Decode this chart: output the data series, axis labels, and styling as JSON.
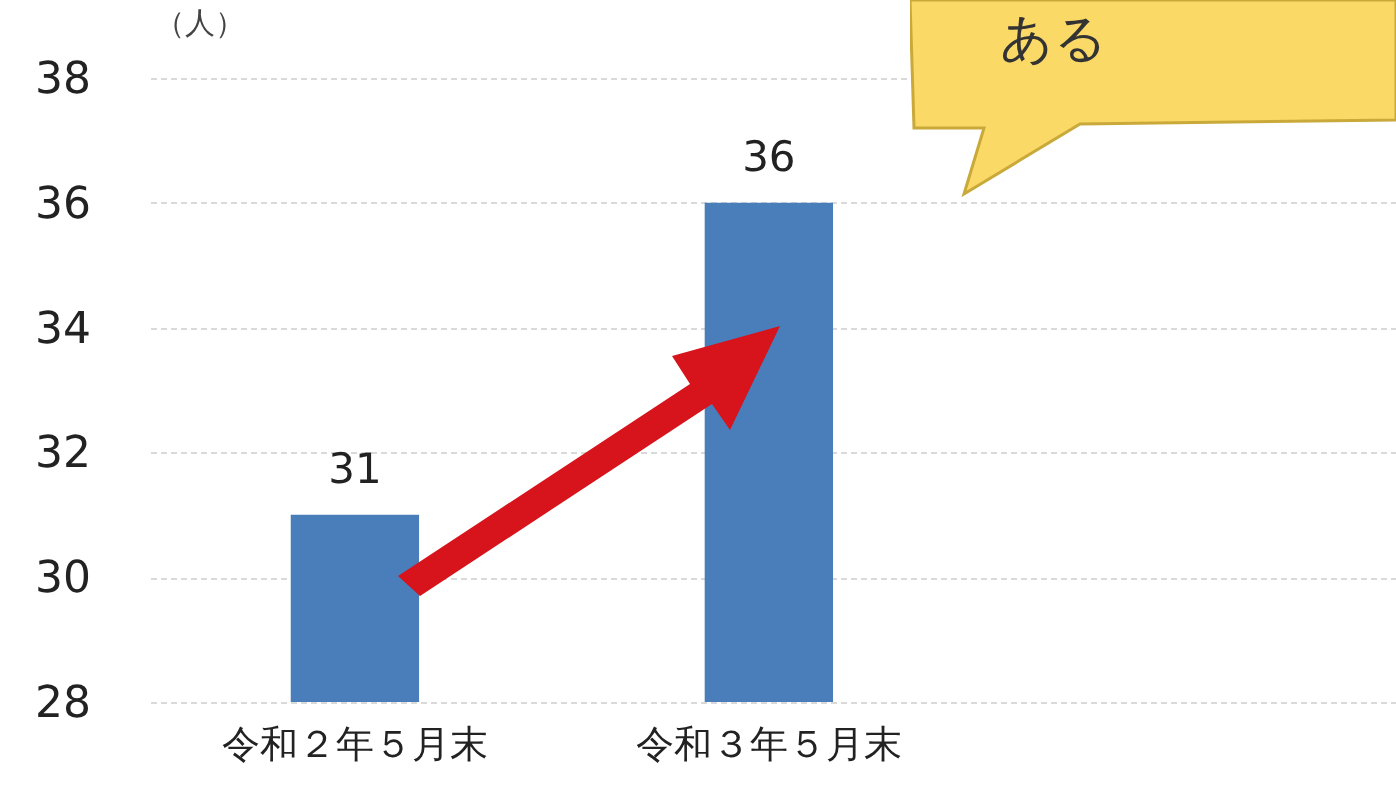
{
  "chart_data": {
    "type": "bar",
    "ylabel": "（人）",
    "categories": [
      "令和２年５月末",
      "令和３年５月末"
    ],
    "values": [
      31,
      36
    ],
    "color": "#4a7ebb",
    "ylim": [
      28,
      38
    ],
    "yticks": [
      28,
      30,
      32,
      34,
      36,
      38
    ],
    "grid": "y",
    "data_labels": true,
    "annotations": [
      "ある"
    ]
  }
}
